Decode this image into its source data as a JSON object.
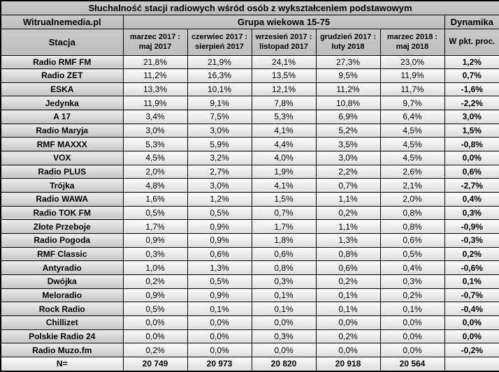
{
  "page": {
    "source_label": "Witrualnemedia.pl",
    "age_group_label": "Grupa wiekowa 15-75",
    "dynamics_label": "Dynamika"
  },
  "colors": {
    "border": "#000000",
    "hdr_top": "#cbcbcb",
    "hdr_bottom": "#bcbcbc",
    "label_top": "#ededed",
    "label_bottom": "#c5c5c5",
    "cell_top": "#fbfbfb",
    "cell_bottom": "#dedede"
  },
  "chart_data": {
    "type": "table",
    "title": "Słuchalność stacji radiowych wśród osób z wykształceniem podstawowym",
    "station_header": "Stacja",
    "period_headers": [
      "marzec 2017 : maj 2017",
      "czerwiec 2017 : sierpień 2017",
      "wrzesień 2017 : listopad 2017",
      "grudzień 2017 : luty 2018",
      "marzec 2018 : maj 2018"
    ],
    "dynamics_header": "W pkt. proc.",
    "rows": [
      {
        "station": "Radio RMF FM",
        "values": [
          "21,8%",
          "21,9%",
          "24,1%",
          "27,3%",
          "23,0%"
        ],
        "dynamics": "1,2%"
      },
      {
        "station": "Radio ZET",
        "values": [
          "11,2%",
          "16,3%",
          "13,5%",
          "9,5%",
          "11,9%"
        ],
        "dynamics": "0,7%"
      },
      {
        "station": "ESKA",
        "values": [
          "13,3%",
          "10,1%",
          "12,1%",
          "11,2%",
          "11,7%"
        ],
        "dynamics": "-1,6%"
      },
      {
        "station": "Jedynka",
        "values": [
          "11,9%",
          "9,1%",
          "7,8%",
          "10,8%",
          "9,7%"
        ],
        "dynamics": "-2,2%"
      },
      {
        "station": "A 17",
        "values": [
          "3,4%",
          "7,5%",
          "5,3%",
          "6,9%",
          "6,4%"
        ],
        "dynamics": "3,0%"
      },
      {
        "station": "Radio Maryja",
        "values": [
          "3,0%",
          "3,0%",
          "4,1%",
          "5,2%",
          "4,5%"
        ],
        "dynamics": "1,5%"
      },
      {
        "station": "RMF MAXXX",
        "values": [
          "5,3%",
          "5,9%",
          "4,4%",
          "3,5%",
          "4,5%"
        ],
        "dynamics": "-0,8%"
      },
      {
        "station": "VOX",
        "values": [
          "4,5%",
          "3,2%",
          "4,0%",
          "3,0%",
          "4,5%"
        ],
        "dynamics": "0,0%"
      },
      {
        "station": "Radio PLUS",
        "values": [
          "2,0%",
          "2,7%",
          "1,9%",
          "2,2%",
          "2,6%"
        ],
        "dynamics": "0,6%"
      },
      {
        "station": "Trójka",
        "values": [
          "4,8%",
          "3,0%",
          "4,1%",
          "0,7%",
          "2,1%"
        ],
        "dynamics": "-2,7%"
      },
      {
        "station": "Radio WAWA",
        "values": [
          "1,6%",
          "1,2%",
          "1,5%",
          "1,1%",
          "2,0%"
        ],
        "dynamics": "0,4%"
      },
      {
        "station": "Radio TOK FM",
        "values": [
          "0,5%",
          "0,5%",
          "0,7%",
          "0,2%",
          "0,8%"
        ],
        "dynamics": "0,3%"
      },
      {
        "station": "Złote Przeboje",
        "values": [
          "1,7%",
          "0,9%",
          "1,7%",
          "1,1%",
          "0,8%"
        ],
        "dynamics": "-0,9%"
      },
      {
        "station": "Radio Pogoda",
        "values": [
          "0,9%",
          "0,9%",
          "1,8%",
          "1,3%",
          "0,6%"
        ],
        "dynamics": "-0,3%"
      },
      {
        "station": "RMF Classic",
        "values": [
          "0,3%",
          "0,6%",
          "0,6%",
          "0,8%",
          "0,5%"
        ],
        "dynamics": "0,2%"
      },
      {
        "station": "Antyradio",
        "values": [
          "1,0%",
          "1,3%",
          "0,8%",
          "0,6%",
          "0,4%"
        ],
        "dynamics": "-0,6%"
      },
      {
        "station": "Dwójka",
        "values": [
          "0,2%",
          "0,5%",
          "0,3%",
          "0,2%",
          "0,3%"
        ],
        "dynamics": "0,1%"
      },
      {
        "station": "Meloradio",
        "values": [
          "0,9%",
          "0,9%",
          "0,1%",
          "0,1%",
          "0,2%"
        ],
        "dynamics": "-0,7%"
      },
      {
        "station": "Rock Radio",
        "values": [
          "0,5%",
          "0,1%",
          "0,1%",
          "0,1%",
          "0,1%"
        ],
        "dynamics": "-0,4%"
      },
      {
        "station": "Chillizet",
        "values": [
          "0,0%",
          "0,0%",
          "0,0%",
          "0,0%",
          "0,0%"
        ],
        "dynamics": "0,0%"
      },
      {
        "station": "Polskie Radio 24",
        "values": [
          "0,0%",
          "0,0%",
          "0,3%",
          "0,2%",
          "0,0%"
        ],
        "dynamics": "0,0%"
      },
      {
        "station": "Radio Muzo.fm",
        "values": [
          "0,2%",
          "0,0%",
          "0,0%",
          "0,0%",
          "0,0%"
        ],
        "dynamics": "-0,2%"
      }
    ],
    "footer": {
      "label": "N=",
      "values": [
        "20 749",
        "20 973",
        "20 820",
        "20 918",
        "20 564"
      ],
      "dynamics": ""
    }
  }
}
